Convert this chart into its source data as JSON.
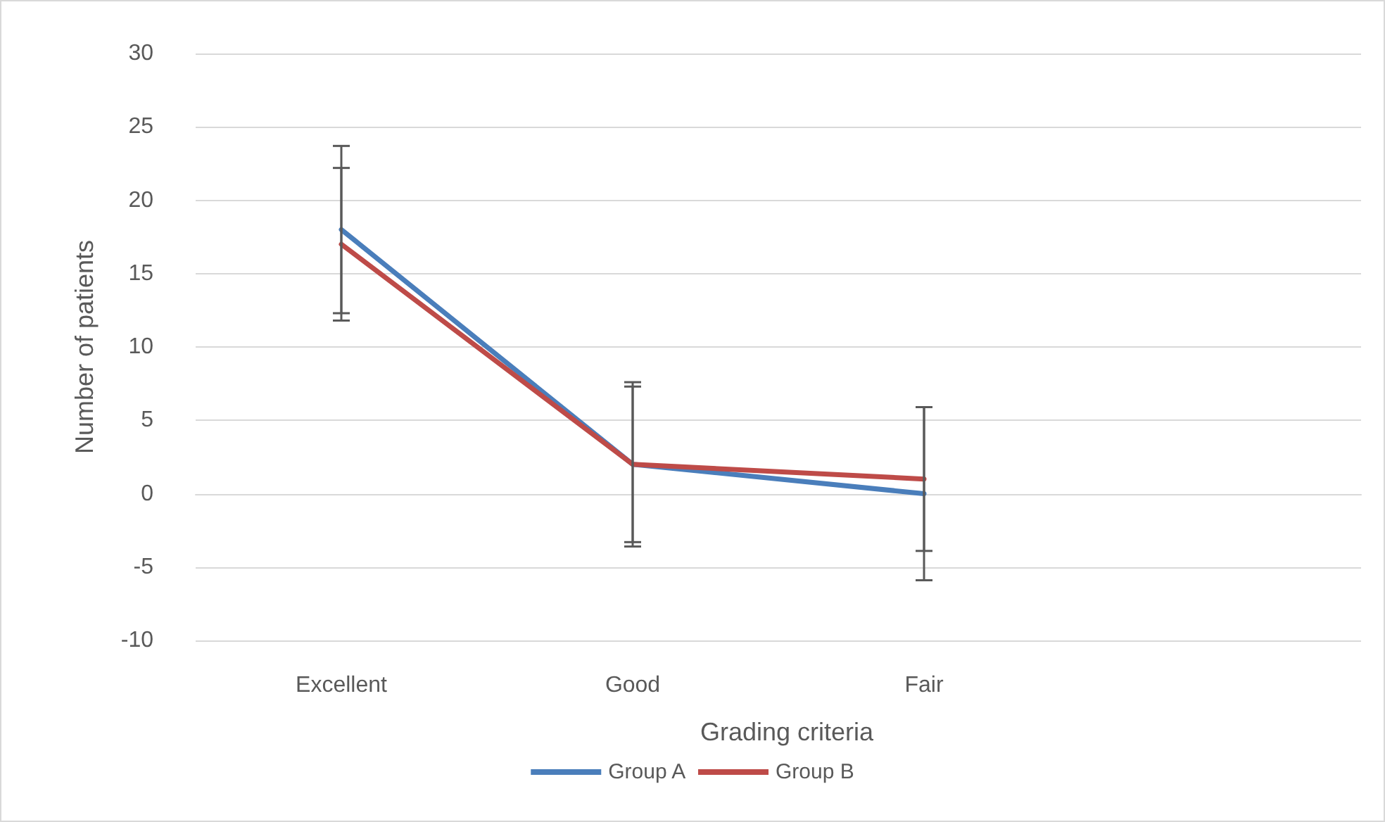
{
  "chart_data": {
    "type": "line",
    "xlabel": "Grading criteria",
    "ylabel": "Number of patients",
    "categories": [
      "Excellent",
      "Good",
      "Fair",
      null
    ],
    "series": [
      {
        "name": "Group A",
        "color": "#4a7ebb",
        "values": [
          18,
          2,
          0,
          null
        ],
        "errors": [
          5.7,
          5.6,
          5.9,
          null
        ]
      },
      {
        "name": "Group B",
        "color": "#be4b48",
        "values": [
          17,
          2,
          1,
          null
        ],
        "errors": [
          5.2,
          5.3,
          4.9,
          null
        ]
      }
    ],
    "ylim": [
      -10,
      30
    ],
    "yticks": [
      -10,
      -5,
      0,
      5,
      10,
      15,
      20,
      25,
      30
    ],
    "grid": "y",
    "legend": "bottom",
    "marker": "none",
    "line_style": "solid"
  }
}
